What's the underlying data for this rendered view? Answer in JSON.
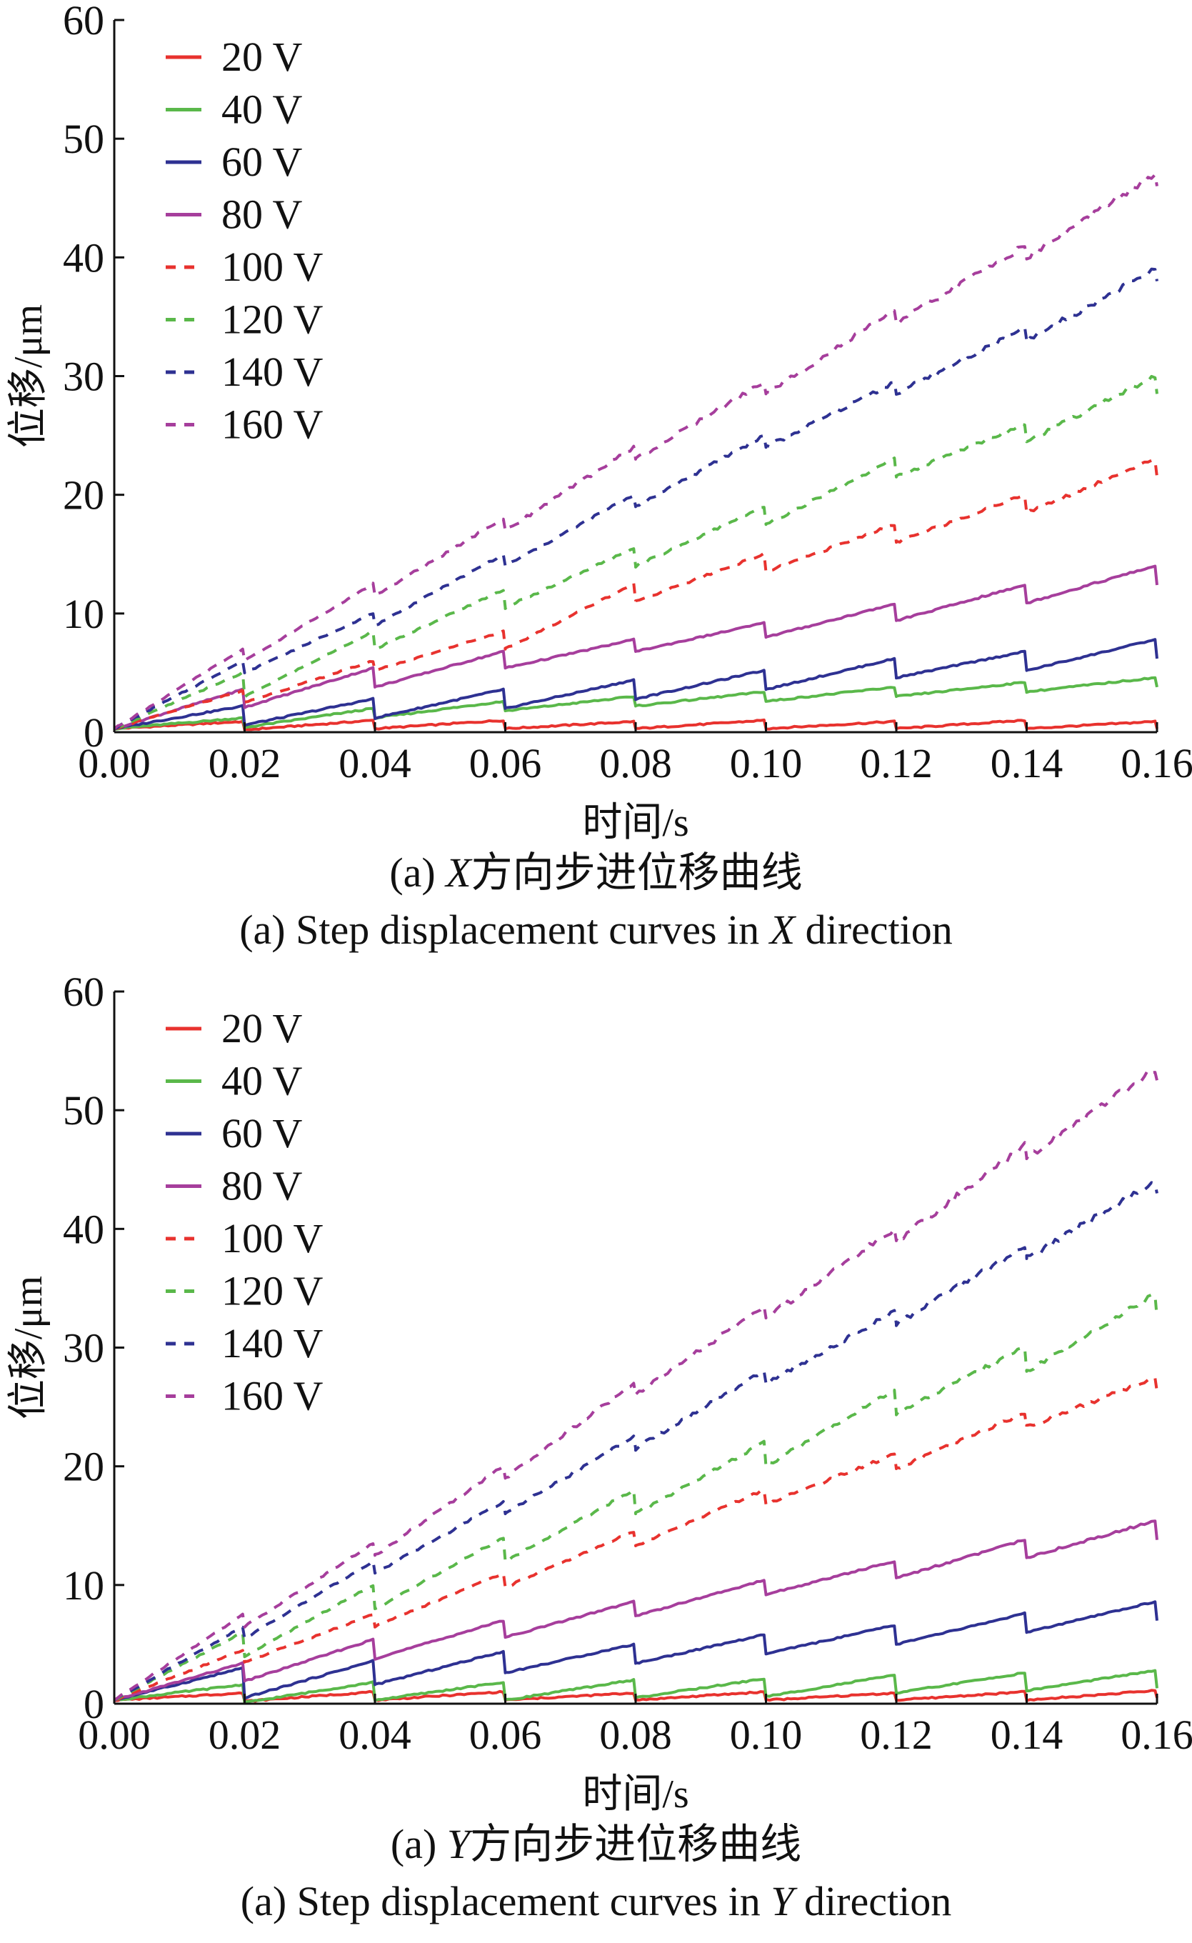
{
  "legend_entries": [
    {
      "name": "20 V",
      "color": "#e8322e",
      "dash": false
    },
    {
      "name": "40 V",
      "color": "#5ab84a",
      "dash": false
    },
    {
      "name": "60 V",
      "color": "#2e3192",
      "dash": false
    },
    {
      "name": "80 V",
      "color": "#a63e9c",
      "dash": false
    },
    {
      "name": "100 V",
      "color": "#e8322e",
      "dash": true
    },
    {
      "name": "120 V",
      "color": "#5ab84a",
      "dash": true
    },
    {
      "name": "140 V",
      "color": "#2e3192",
      "dash": true
    },
    {
      "name": "160 V",
      "color": "#a63e9c",
      "dash": true
    }
  ],
  "captions": {
    "a_cn_prefix": "(a) ",
    "a_cn_axis": "X",
    "a_cn_text": "方向步进位移曲线",
    "a_en_prefix": "(a) Step displacement curves in ",
    "a_en_axis": "X",
    "a_en_suffix": " direction",
    "b_cn_prefix": "(a) ",
    "b_cn_axis": "Y",
    "b_cn_text": "方向步进位移曲线",
    "b_en_prefix": "(a) Step displacement curves in ",
    "b_en_axis": "Y",
    "b_en_suffix": " direction"
  },
  "chart_data": [
    {
      "type": "line",
      "title": "",
      "xlabel": "时间/s",
      "ylabel": "位移/μm",
      "xlim": [
        0,
        0.16
      ],
      "ylim": [
        0,
        60
      ],
      "x_ticks": [
        "0.00",
        "0.02",
        "0.04",
        "0.06",
        "0.08",
        "0.10",
        "0.12",
        "0.14",
        "0.16"
      ],
      "y_ticks": [
        "0",
        "10",
        "20",
        "30",
        "40",
        "50",
        "60"
      ],
      "grid": false,
      "legend_position": "top-left",
      "step_period": 0.02,
      "series": [
        {
          "name": "20 V",
          "step_peaks": [
            0.9,
            1.0,
            1.0,
            0.9,
            1.0,
            0.9,
            1.0,
            0.9
          ],
          "step_drops": [
            0.7,
            0.7,
            0.7,
            0.6,
            0.7,
            0.6,
            0.7,
            0.6
          ]
        },
        {
          "name": "40 V",
          "step_peaks": [
            1.2,
            2.0,
            2.6,
            3.0,
            3.4,
            3.8,
            4.2,
            4.6
          ],
          "step_drops": [
            0.8,
            0.8,
            0.8,
            0.8,
            0.8,
            0.8,
            0.8,
            0.8
          ]
        },
        {
          "name": "60 V",
          "step_peaks": [
            2.2,
            2.8,
            3.6,
            4.4,
            5.2,
            6.2,
            6.8,
            7.8
          ],
          "step_drops": [
            1.6,
            1.6,
            1.6,
            1.6,
            1.6,
            1.6,
            1.6,
            1.6
          ]
        },
        {
          "name": "80 V",
          "step_peaks": [
            3.6,
            5.4,
            6.8,
            7.8,
            9.2,
            10.8,
            12.4,
            14.0
          ],
          "step_drops": [
            1.5,
            1.6,
            1.4,
            1.0,
            1.2,
            1.4,
            1.5,
            1.6
          ]
        },
        {
          "name": "100 V",
          "step_peaks": [
            3.5,
            6.0,
            8.5,
            12.5,
            15.0,
            17.5,
            20.0,
            23.0
          ],
          "step_drops": [
            1.0,
            0.8,
            1.5,
            1.5,
            1.5,
            1.5,
            1.5,
            1.5
          ]
        },
        {
          "name": "120 V",
          "step_peaks": [
            5.0,
            8.5,
            12.0,
            15.5,
            19.0,
            23.0,
            26.0,
            30.0
          ],
          "step_drops": [
            2.0,
            1.5,
            1.5,
            1.5,
            1.5,
            1.5,
            1.5,
            1.5
          ]
        },
        {
          "name": "140 V",
          "step_peaks": [
            6.0,
            10.0,
            15.0,
            20.0,
            25.0,
            29.5,
            34.0,
            39.0
          ],
          "step_drops": [
            1.0,
            1.0,
            1.0,
            1.0,
            1.0,
            1.0,
            1.0,
            1.0
          ]
        },
        {
          "name": "160 V",
          "step_peaks": [
            7.0,
            12.5,
            18.0,
            24.0,
            29.5,
            35.5,
            41.0,
            47.0
          ],
          "step_drops": [
            1.0,
            1.0,
            1.0,
            1.0,
            1.0,
            1.0,
            1.0,
            1.0
          ]
        }
      ]
    },
    {
      "type": "line",
      "title": "",
      "xlabel": "时间/s",
      "ylabel": "位移/μm",
      "xlim": [
        0,
        0.16
      ],
      "ylim": [
        0,
        60
      ],
      "x_ticks": [
        "0.00",
        "0.02",
        "0.04",
        "0.06",
        "0.08",
        "0.10",
        "0.12",
        "0.14",
        "0.16"
      ],
      "y_ticks": [
        "0",
        "10",
        "20",
        "30",
        "40",
        "50",
        "60"
      ],
      "grid": false,
      "legend_position": "top-left",
      "step_period": 0.02,
      "series": [
        {
          "name": "20 V",
          "step_peaks": [
            0.9,
            1.0,
            1.0,
            0.9,
            1.0,
            0.9,
            1.0,
            1.1
          ],
          "step_drops": [
            0.7,
            0.7,
            0.7,
            0.6,
            0.7,
            0.6,
            0.7,
            0.6
          ]
        },
        {
          "name": "40 V",
          "step_peaks": [
            1.6,
            1.8,
            1.8,
            2.0,
            2.1,
            2.4,
            2.6,
            2.8
          ],
          "step_drops": [
            1.5,
            1.5,
            1.5,
            1.5,
            1.5,
            1.5,
            1.5,
            1.5
          ]
        },
        {
          "name": "60 V",
          "step_peaks": [
            3.0,
            3.6,
            4.4,
            5.0,
            5.8,
            6.6,
            7.6,
            8.6
          ],
          "step_drops": [
            2.5,
            2.0,
            1.8,
            1.6,
            1.6,
            1.6,
            1.6,
            1.6
          ]
        },
        {
          "name": "80 V",
          "step_peaks": [
            3.4,
            5.4,
            7.0,
            8.6,
            10.4,
            12.0,
            13.8,
            15.4
          ],
          "step_drops": [
            1.5,
            1.6,
            1.4,
            1.2,
            1.2,
            1.4,
            1.5,
            1.6
          ]
        },
        {
          "name": "100 V",
          "step_peaks": [
            4.5,
            7.5,
            11.0,
            14.5,
            18.0,
            21.0,
            24.5,
            27.5
          ],
          "step_drops": [
            1.0,
            1.0,
            1.2,
            1.2,
            1.2,
            1.2,
            1.2,
            1.2
          ]
        },
        {
          "name": "120 V",
          "step_peaks": [
            6.0,
            10.0,
            14.0,
            18.0,
            22.0,
            26.5,
            30.0,
            34.5
          ],
          "step_drops": [
            2.0,
            2.0,
            2.0,
            2.0,
            2.0,
            2.0,
            2.0,
            2.0
          ]
        },
        {
          "name": "140 V",
          "step_peaks": [
            6.5,
            12.0,
            17.0,
            22.5,
            28.0,
            33.0,
            38.5,
            44.0
          ],
          "step_drops": [
            1.0,
            1.0,
            1.0,
            1.0,
            1.0,
            1.0,
            1.0,
            1.0
          ]
        },
        {
          "name": "160 V",
          "step_peaks": [
            7.5,
            13.5,
            20.0,
            27.0,
            33.5,
            40.0,
            47.0,
            53.5
          ],
          "step_drops": [
            1.0,
            1.0,
            1.0,
            1.0,
            1.0,
            1.0,
            1.0,
            1.0
          ]
        }
      ]
    }
  ]
}
